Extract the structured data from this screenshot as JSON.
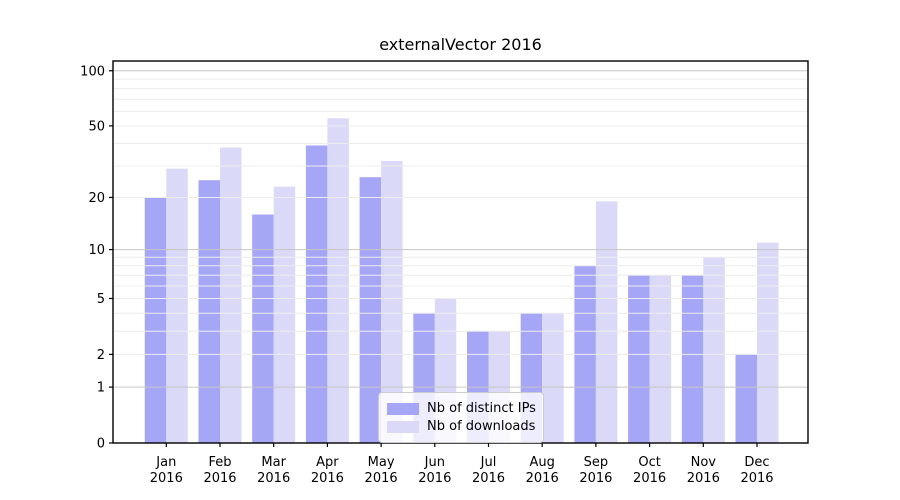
{
  "chart_data": {
    "type": "bar",
    "title": "externalVector 2016",
    "scale": "log1p",
    "grid": true,
    "legend_position": "lower center",
    "year": "2016",
    "categories": [
      "Jan",
      "Feb",
      "Mar",
      "Apr",
      "May",
      "Jun",
      "Jul",
      "Aug",
      "Sep",
      "Oct",
      "Nov",
      "Dec"
    ],
    "series": [
      {
        "name": "Nb of distinct IPs",
        "color": "#a6a6f7",
        "values": [
          20,
          25,
          16,
          39,
          26,
          4,
          3,
          4,
          8,
          7,
          7,
          2
        ]
      },
      {
        "name": "Nb of downloads",
        "color": "#dadaf8",
        "values": [
          29,
          38,
          23,
          55,
          32,
          5,
          3,
          4,
          19,
          7,
          9,
          11
        ]
      }
    ],
    "yticks": [
      0,
      1,
      2,
      5,
      10,
      20,
      50,
      100
    ],
    "ylim": [
      0,
      113
    ],
    "xlabel": "",
    "ylabel": ""
  },
  "colors": {
    "grid_minor": "#ececec",
    "grid_major": "#c6c6c6",
    "axis": "#000000",
    "tick_label": "#000000",
    "legend_border": "#cccccc"
  }
}
